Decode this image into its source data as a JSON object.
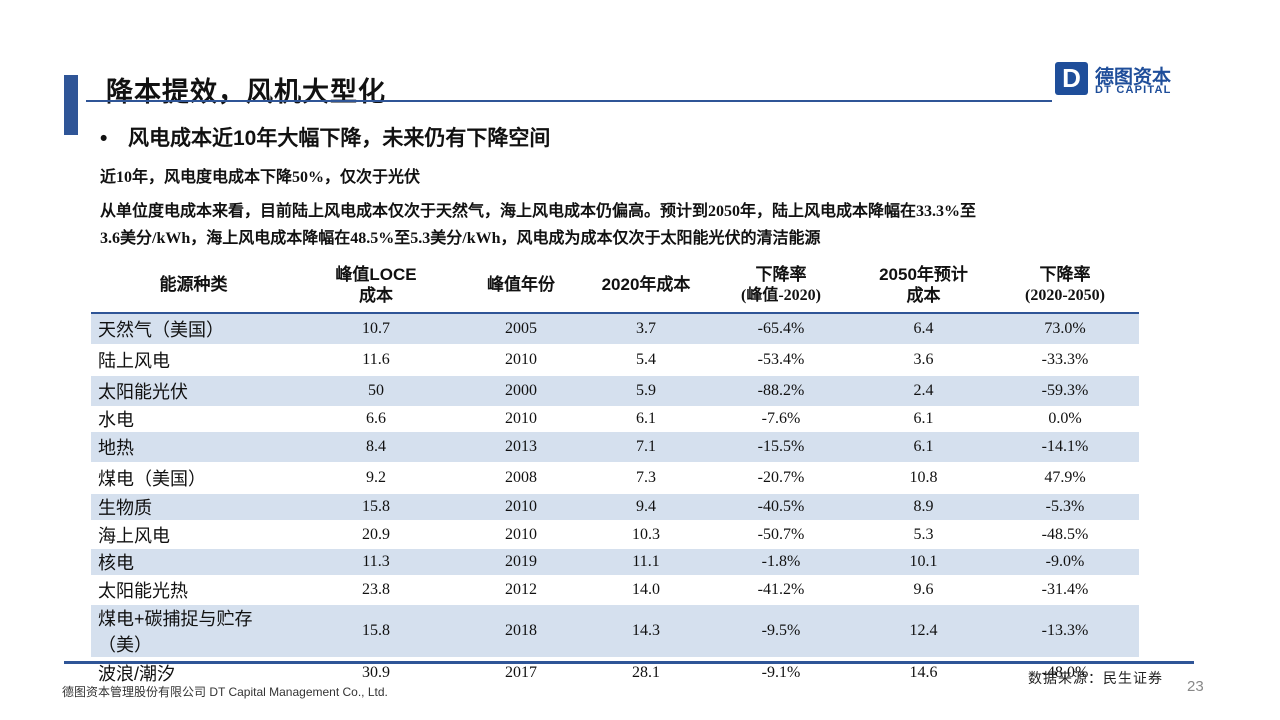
{
  "header": {
    "title": "降本提效，风机大型化",
    "logo_cn": "德图资本",
    "logo_en": "DT CAPITAL"
  },
  "bullet": "风电成本近10年大幅下降，未来仍有下降空间",
  "line1": "近10年，风电度电成本下降50%，仅次于光伏",
  "paragraph_line1": "从单位度电成本来看，目前陆上风电成本仅次于天然气，海上风电成本仍偏高。预计到2050年，陆上风电成本降幅在33.3%至",
  "paragraph_line2": "3.6美分/kWh，海上风电成本降幅在48.5%至5.3美分/kWh，风电成为成本仅次于太阳能光伏的清洁能源",
  "table": {
    "headers": {
      "h0": "能源种类",
      "h1a": "峰值LOCE",
      "h1b": "成本",
      "h2": "峰值年份",
      "h3": "2020年成本",
      "h4a": "下降率",
      "h4b": "(峰值-2020)",
      "h5a": "2050年预计",
      "h5b": "成本",
      "h6a": "下降率",
      "h6b": "(2020-2050)"
    },
    "rows": [
      {
        "name": "天然气（美国）",
        "peak": "10.7",
        "year": "2005",
        "c2020": "3.7",
        "drop1": "-65.4%",
        "c2050": "6.4",
        "drop2": "73.0%"
      },
      {
        "name": "陆上风电",
        "peak": "11.6",
        "year": "2010",
        "c2020": "5.4",
        "drop1": "-53.4%",
        "c2050": "3.6",
        "drop2": "-33.3%"
      },
      {
        "name": "太阳能光伏",
        "peak": "50",
        "year": "2000",
        "c2020": "5.9",
        "drop1": "-88.2%",
        "c2050": "2.4",
        "drop2": "-59.3%"
      },
      {
        "name": "水电",
        "peak": "6.6",
        "year": "2010",
        "c2020": "6.1",
        "drop1": "-7.6%",
        "c2050": "6.1",
        "drop2": "0.0%"
      },
      {
        "name": "地热",
        "peak": "8.4",
        "year": "2013",
        "c2020": "7.1",
        "drop1": "-15.5%",
        "c2050": "6.1",
        "drop2": "-14.1%"
      },
      {
        "name": "煤电（美国）",
        "peak": "9.2",
        "year": "2008",
        "c2020": "7.3",
        "drop1": "-20.7%",
        "c2050": "10.8",
        "drop2": "47.9%"
      },
      {
        "name": "生物质",
        "peak": "15.8",
        "year": "2010",
        "c2020": "9.4",
        "drop1": "-40.5%",
        "c2050": "8.9",
        "drop2": "-5.3%"
      },
      {
        "name": "海上风电",
        "peak": "20.9",
        "year": "2010",
        "c2020": "10.3",
        "drop1": "-50.7%",
        "c2050": "5.3",
        "drop2": "-48.5%"
      },
      {
        "name": "核电",
        "peak": "11.3",
        "year": "2019",
        "c2020": "11.1",
        "drop1": "-1.8%",
        "c2050": "10.1",
        "drop2": "-9.0%"
      },
      {
        "name": "太阳能光热",
        "peak": "23.8",
        "year": "2012",
        "c2020": "14.0",
        "drop1": "-41.2%",
        "c2050": "9.6",
        "drop2": "-31.4%"
      },
      {
        "name": "煤电+碳捕捉与贮存（美）",
        "peak": "15.8",
        "year": "2018",
        "c2020": "14.3",
        "drop1": "-9.5%",
        "c2050": "12.4",
        "drop2": "-13.3%"
      },
      {
        "name": "波浪/潮汐",
        "peak": "30.9",
        "year": "2017",
        "c2020": "28.1",
        "drop1": "-9.1%",
        "c2050": "14.6",
        "drop2": "-48.0%"
      }
    ]
  },
  "source": "数据来源：民生证券",
  "footer": "德图资本管理股份有限公司 DT Capital Management Co., Ltd.",
  "page_number": "23"
}
